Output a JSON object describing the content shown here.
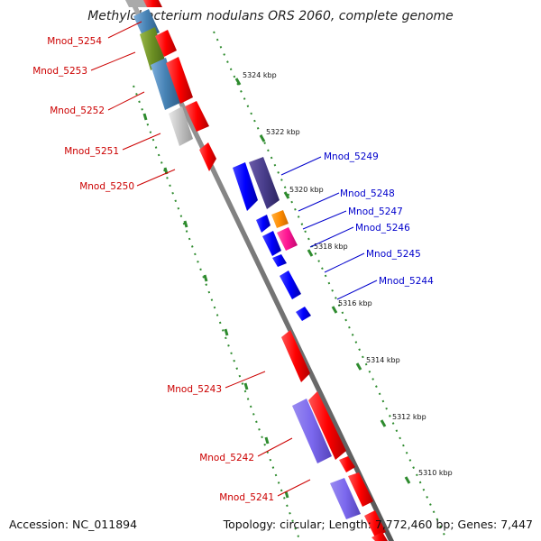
{
  "title": "Methylobacterium nodulans ORS 2060, complete genome",
  "footer": {
    "accession": "Accession: NC_011894",
    "summary": "Topology: circular; Length: 7,772,460 bp; Genes: 7,447"
  },
  "colors": {
    "left_label": "#cc0000",
    "right_label": "#0000cc",
    "backbone": "#777777",
    "ticks": "#2e8b2e"
  },
  "scale_ticks": [
    {
      "label": "5324 kbp"
    },
    {
      "label": "5322 kbp"
    },
    {
      "label": "5320 kbp"
    },
    {
      "label": "5318 kbp"
    },
    {
      "label": "5316 kbp"
    },
    {
      "label": "5314 kbp"
    },
    {
      "label": "5312 kbp"
    },
    {
      "label": "5310 kbp"
    }
  ],
  "left_genes": [
    {
      "label": "Mnod_5254"
    },
    {
      "label": "Mnod_5253"
    },
    {
      "label": "Mnod_5252"
    },
    {
      "label": "Mnod_5251"
    },
    {
      "label": "Mnod_5250"
    },
    {
      "label": "Mnod_5243"
    },
    {
      "label": "Mnod_5242"
    },
    {
      "label": "Mnod_5241"
    }
  ],
  "right_genes": [
    {
      "label": "Mnod_5249"
    },
    {
      "label": "Mnod_5248"
    },
    {
      "label": "Mnod_5247"
    },
    {
      "label": "Mnod_5246"
    },
    {
      "label": "Mnod_5245"
    },
    {
      "label": "Mnod_5244"
    }
  ]
}
